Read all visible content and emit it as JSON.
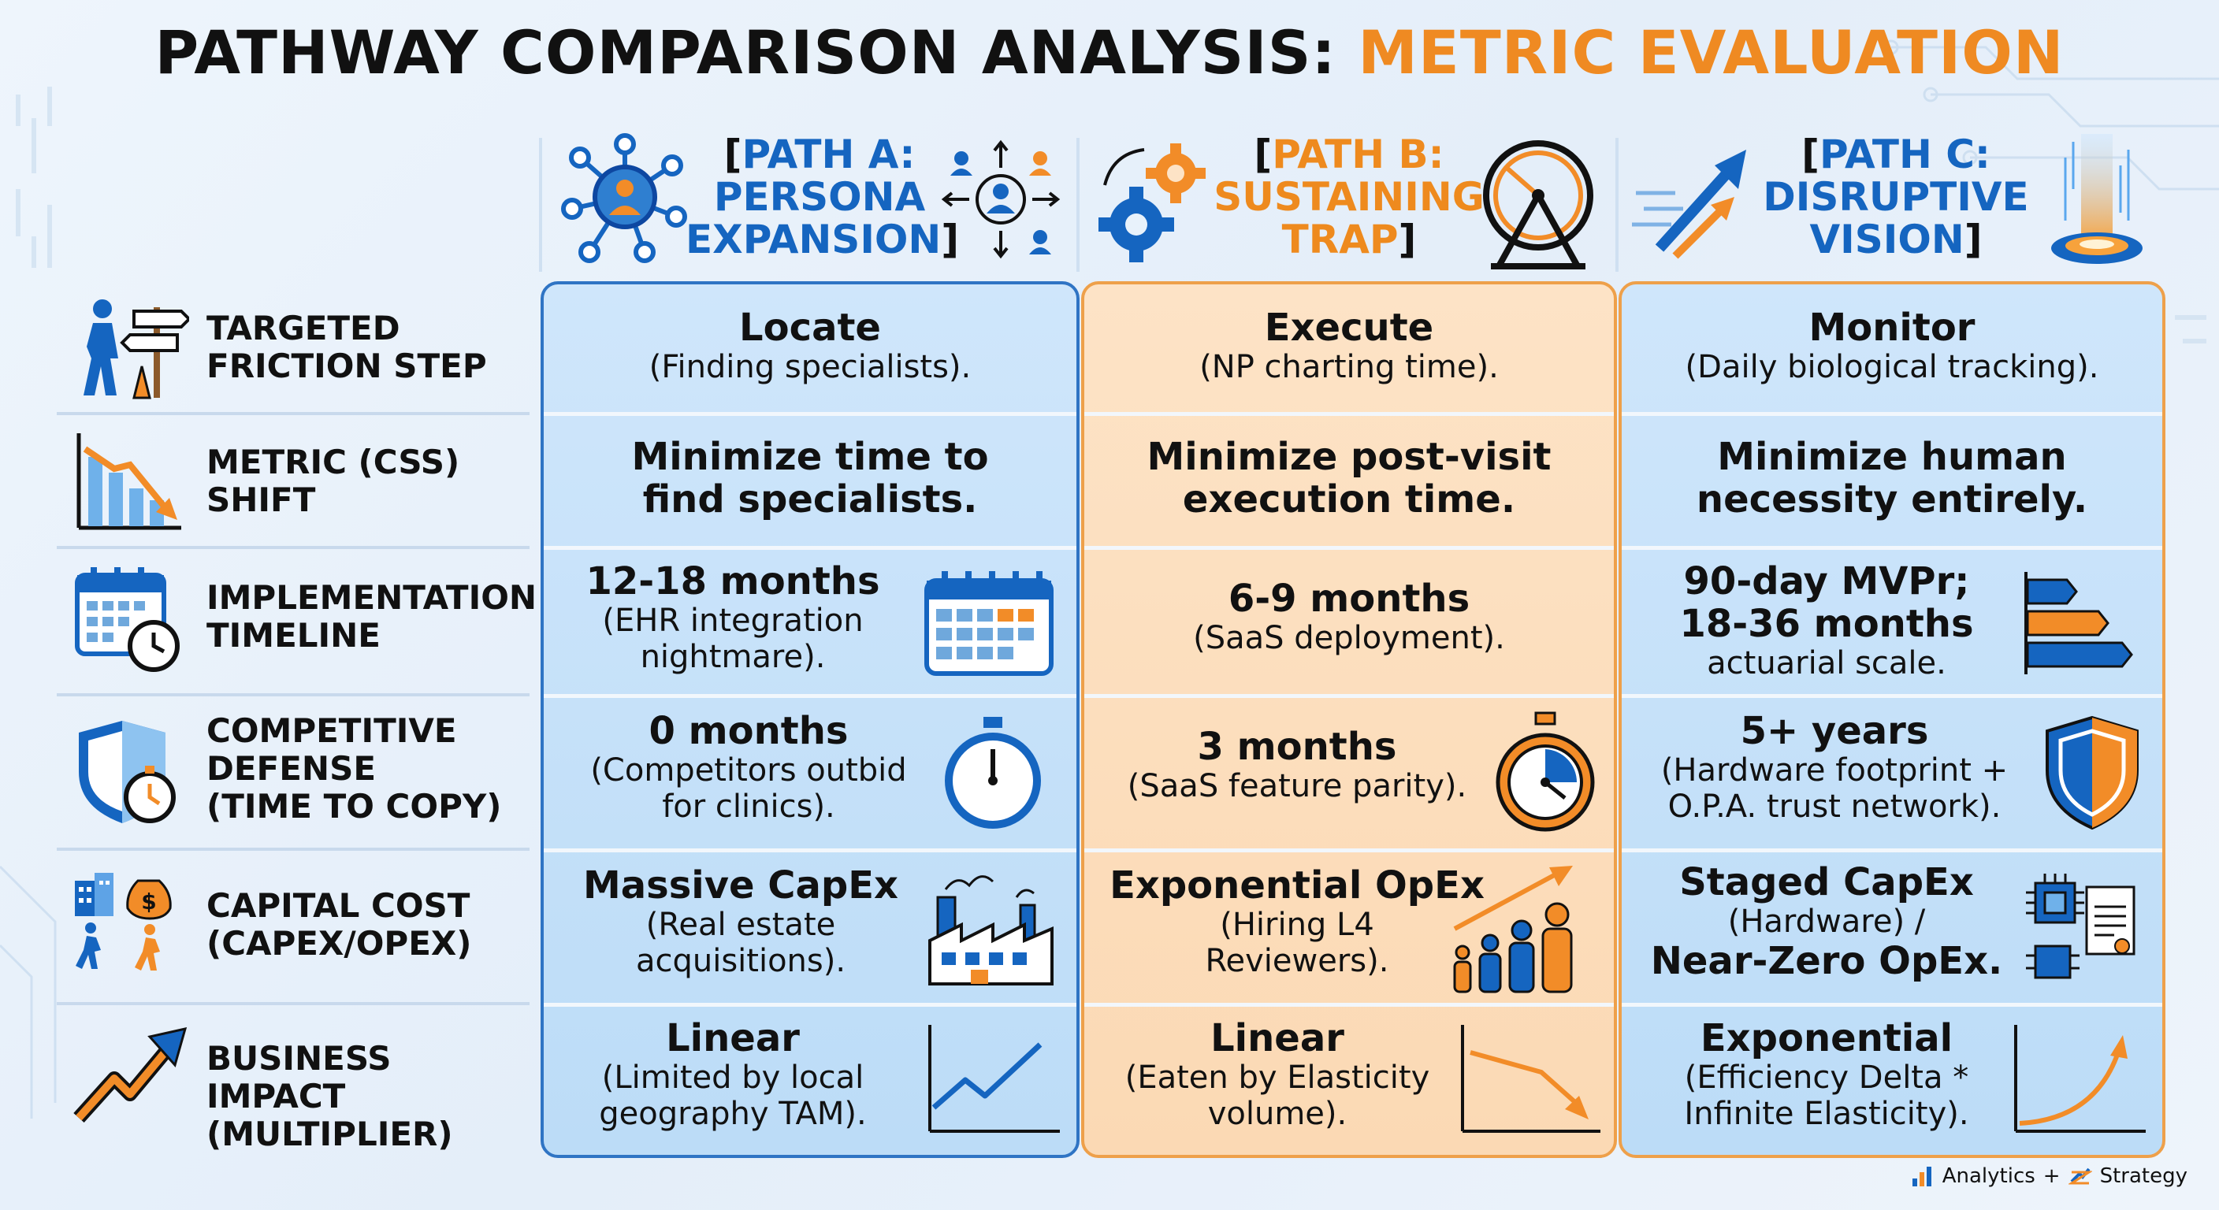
{
  "title": {
    "main": "PATHWAY COMPARISON ANALYSIS:",
    "accent": "METRIC EVALUATION"
  },
  "colors": {
    "accent_orange": "#ef8a22",
    "blue": "#1565c0",
    "panel_blue": "#bcdcf7",
    "panel_orange": "#fbd9b4"
  },
  "columns": [
    {
      "line1": "PATH A:",
      "line2": "PERSONA",
      "line3": "EXPANSION",
      "icon_left": "network-persona-icon",
      "icon_right": "user-arrows-icon"
    },
    {
      "line1": "PATH B:",
      "line2": "SUSTAINING",
      "line3": "TRAP",
      "icon_left": "gears-icon",
      "icon_right": "hamster-wheel-icon"
    },
    {
      "line1": "PATH C:",
      "line2": "DISRUPTIVE",
      "line3": "VISION",
      "icon_left": "rising-arrows-icon",
      "icon_right": "portal-beam-icon"
    }
  ],
  "rows": [
    {
      "l1": "TARGETED",
      "l2": "FRICTION STEP",
      "l3": "",
      "icon": "person-signpost-icon"
    },
    {
      "l1": "METRIC (CSS)",
      "l2": "SHIFT",
      "l3": "",
      "icon": "declining-chart-icon"
    },
    {
      "l1": "IMPLEMENTATION",
      "l2": "TIMELINE",
      "l3": "",
      "icon": "calendar-clock-icon"
    },
    {
      "l1": "COMPETITIVE",
      "l2": "DEFENSE",
      "l3": "(TIME TO COPY)",
      "icon": "shield-stopwatch-icon"
    },
    {
      "l1": "CAPITAL COST",
      "l2": "(CAPEX/OPEX)",
      "l3": "",
      "icon": "building-money-runner-icon"
    },
    {
      "l1": "BUSINESS IMPACT",
      "l2": "(MULTIPLIER)",
      "l3": "",
      "icon": "rising-arrow-icon"
    }
  ],
  "cells": {
    "a": [
      {
        "main": [
          "Locate"
        ],
        "sub": [
          "(Finding specialists)."
        ]
      },
      {
        "main": [
          "Minimize time to",
          "find specialists."
        ],
        "sub": []
      },
      {
        "main": [
          "12-18 months"
        ],
        "sub": [
          "(EHR integration",
          "nightmare)."
        ],
        "icon": "calendar-icon"
      },
      {
        "main": [
          "0 months"
        ],
        "sub": [
          "(Competitors outbid",
          "for clinics)."
        ],
        "icon": "stopwatch-icon"
      },
      {
        "main": [
          "Massive CapEx"
        ],
        "sub": [
          "(Real estate",
          "acquisitions)."
        ],
        "icon": "factory-icon"
      },
      {
        "main": [
          "Linear"
        ],
        "sub": [
          "(Limited by local",
          "geography TAM)."
        ],
        "icon": "line-chart-up-icon"
      }
    ],
    "b": [
      {
        "main": [
          "Execute"
        ],
        "sub": [
          "(NP charting time)."
        ]
      },
      {
        "main": [
          "Minimize post-visit",
          "execution time."
        ],
        "sub": []
      },
      {
        "main": [
          "6-9 months"
        ],
        "sub": [
          "(SaaS deployment)."
        ]
      },
      {
        "main": [
          "3 months"
        ],
        "sub": [
          "(SaaS feature parity)."
        ],
        "icon": "stopwatch-icon"
      },
      {
        "main": [
          "Exponential OpEx"
        ],
        "sub": [
          "(Hiring L4",
          "Reviewers)."
        ],
        "icon": "growing-people-icon"
      },
      {
        "main": [
          "Linear"
        ],
        "sub": [
          "(Eaten by Elasticity",
          "volume)."
        ],
        "icon": "line-chart-down-icon"
      }
    ],
    "c": [
      {
        "main": [
          "Monitor"
        ],
        "sub": [
          "(Daily biological tracking)."
        ]
      },
      {
        "main": [
          "Minimize human",
          "necessity entirely."
        ],
        "sub": []
      },
      {
        "main": [
          "90-day MVPr;",
          "18-36 months"
        ],
        "sub": [
          "actuarial scale."
        ],
        "icon": "staged-bars-icon"
      },
      {
        "main": [
          "5+ years"
        ],
        "sub": [
          "(Hardware footprint +",
          "O.P.A. trust network)."
        ],
        "icon": "shield-icon"
      },
      {
        "main": [
          "Staged CapEx"
        ],
        "sub": [
          "(Hardware) /"
        ],
        "main2": [
          "Near-Zero OpEx."
        ],
        "icon": "chip-document-icon"
      },
      {
        "main": [
          "Exponential"
        ],
        "sub": [
          "(Efficiency Delta *",
          "Infinite Elasticity)."
        ],
        "icon": "exponential-curve-icon"
      }
    ]
  },
  "footer": {
    "left": "Analytics",
    "plus": "+",
    "right": "Strategy"
  }
}
